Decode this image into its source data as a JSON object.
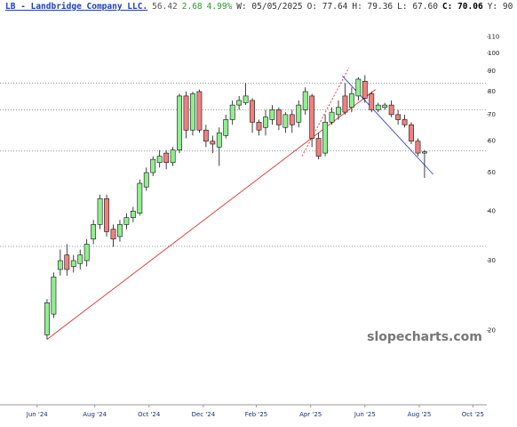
{
  "header": [
    "LB - Landbridge Company LLC.",
    "56.42",
    "2.68",
    "4.99%",
    "W: 05/05/2025",
    "O: 77.64",
    "H: 79.36",
    "L: 67.60",
    "C: 70.06",
    "Y: 90"
  ],
  "watermark": "slopecharts.com",
  "chart_data": {
    "type": "candlestick",
    "log_scale": true,
    "up_color": "#90ee90",
    "down_color": "#f08080",
    "x": [
      0,
      1,
      2,
      3,
      4,
      5,
      6,
      7,
      8,
      9,
      10,
      11,
      12,
      13,
      14,
      15,
      16,
      17,
      18,
      19,
      20,
      21,
      22,
      23,
      24,
      25,
      26,
      27,
      28,
      29,
      30,
      31,
      32,
      33,
      34,
      35,
      36,
      37,
      38,
      39,
      40,
      41,
      42,
      43,
      44,
      45,
      46,
      47,
      48,
      49,
      50,
      51,
      52,
      53,
      54,
      55,
      56,
      57
    ],
    "open": [
      19.5,
      22,
      28.5,
      31,
      29,
      29.5,
      30,
      34,
      37,
      43,
      36,
      34.5,
      37,
      38.5,
      39.5,
      46,
      50,
      53,
      56,
      53,
      57,
      78,
      64,
      80,
      64,
      60,
      58,
      62,
      68,
      74,
      75,
      76,
      67,
      65,
      68,
      72,
      65,
      70,
      67,
      72,
      78,
      61,
      56,
      67,
      70,
      78,
      73,
      78,
      85,
      79,
      72,
      73,
      74,
      70,
      68,
      66,
      60,
      56
    ],
    "high": [
      24,
      28,
      32,
      33,
      31,
      32,
      34,
      38,
      44,
      44,
      37,
      38,
      39.5,
      41,
      48,
      51.5,
      55,
      57,
      57,
      58,
      79,
      80,
      80,
      81,
      66,
      62,
      65,
      70,
      76,
      78,
      84,
      77,
      68,
      72,
      74,
      73,
      71,
      72,
      76,
      82,
      79,
      63,
      70,
      73,
      76,
      84,
      82,
      87,
      88,
      80,
      75,
      75,
      76,
      72,
      70,
      67,
      61,
      57
    ],
    "low": [
      19,
      21.5,
      27.5,
      27.5,
      28,
      28.5,
      29,
      33,
      36,
      34.5,
      32.5,
      33.5,
      36,
      37.5,
      39,
      45,
      49,
      51.5,
      51,
      52,
      56,
      61,
      62,
      63,
      58,
      56,
      52,
      61,
      66,
      72,
      74,
      63,
      62,
      62,
      66,
      64,
      63,
      63,
      65,
      70,
      58,
      54,
      55,
      66,
      68,
      70,
      71,
      76,
      75,
      71,
      71,
      72,
      69,
      66,
      65,
      59,
      55,
      48.5
    ],
    "close": [
      23.5,
      27.3,
      30,
      28.5,
      30,
      31,
      33,
      37,
      43,
      35.5,
      34,
      37,
      38.5,
      40,
      47,
      50,
      54,
      55,
      53,
      57,
      78,
      64,
      79,
      64,
      60,
      59,
      63,
      68,
      74,
      76,
      78,
      67,
      64,
      69,
      72,
      66,
      70,
      66,
      74,
      80,
      61,
      55,
      67,
      71,
      73,
      71,
      79,
      86,
      77,
      72,
      74,
      74,
      70,
      68,
      66,
      60,
      56,
      56.4
    ],
    "ylim": [
      13,
      126
    ],
    "yticks": [
      20,
      30,
      40,
      50,
      60,
      70,
      80,
      90,
      100,
      110
    ],
    "xlim": [
      -7.1,
      66.4
    ],
    "xticks": [
      {
        "value": -1.5,
        "label": "Jun '24"
      },
      {
        "value": 7.2,
        "label": "Aug '24"
      },
      {
        "value": 15.4,
        "label": "Oct '24"
      },
      {
        "value": 23.6,
        "label": "Dec '24"
      },
      {
        "value": 31.6,
        "label": "Feb '25"
      },
      {
        "value": 39.8,
        "label": "Apr '25"
      },
      {
        "value": 48.0,
        "label": "Jun '25"
      },
      {
        "value": 56.2,
        "label": "Aug '25"
      },
      {
        "value": 64.3,
        "label": "Oct '25"
      }
    ],
    "levels": [
      84,
      72,
      56.7,
      32.6
    ],
    "trendlines": [
      {
        "color": "#e03030",
        "dash": false,
        "x": [
          0,
          49.6
        ],
        "y": [
          19,
          81
        ]
      },
      {
        "color": "#e03030",
        "dash": true,
        "x": [
          38.5,
          45.6
        ],
        "y": [
          55,
          92
        ]
      },
      {
        "color": "#3040d0",
        "dash": false,
        "x": [
          44.6,
          58.3
        ],
        "y": [
          87.6,
          49.5
        ]
      }
    ]
  }
}
